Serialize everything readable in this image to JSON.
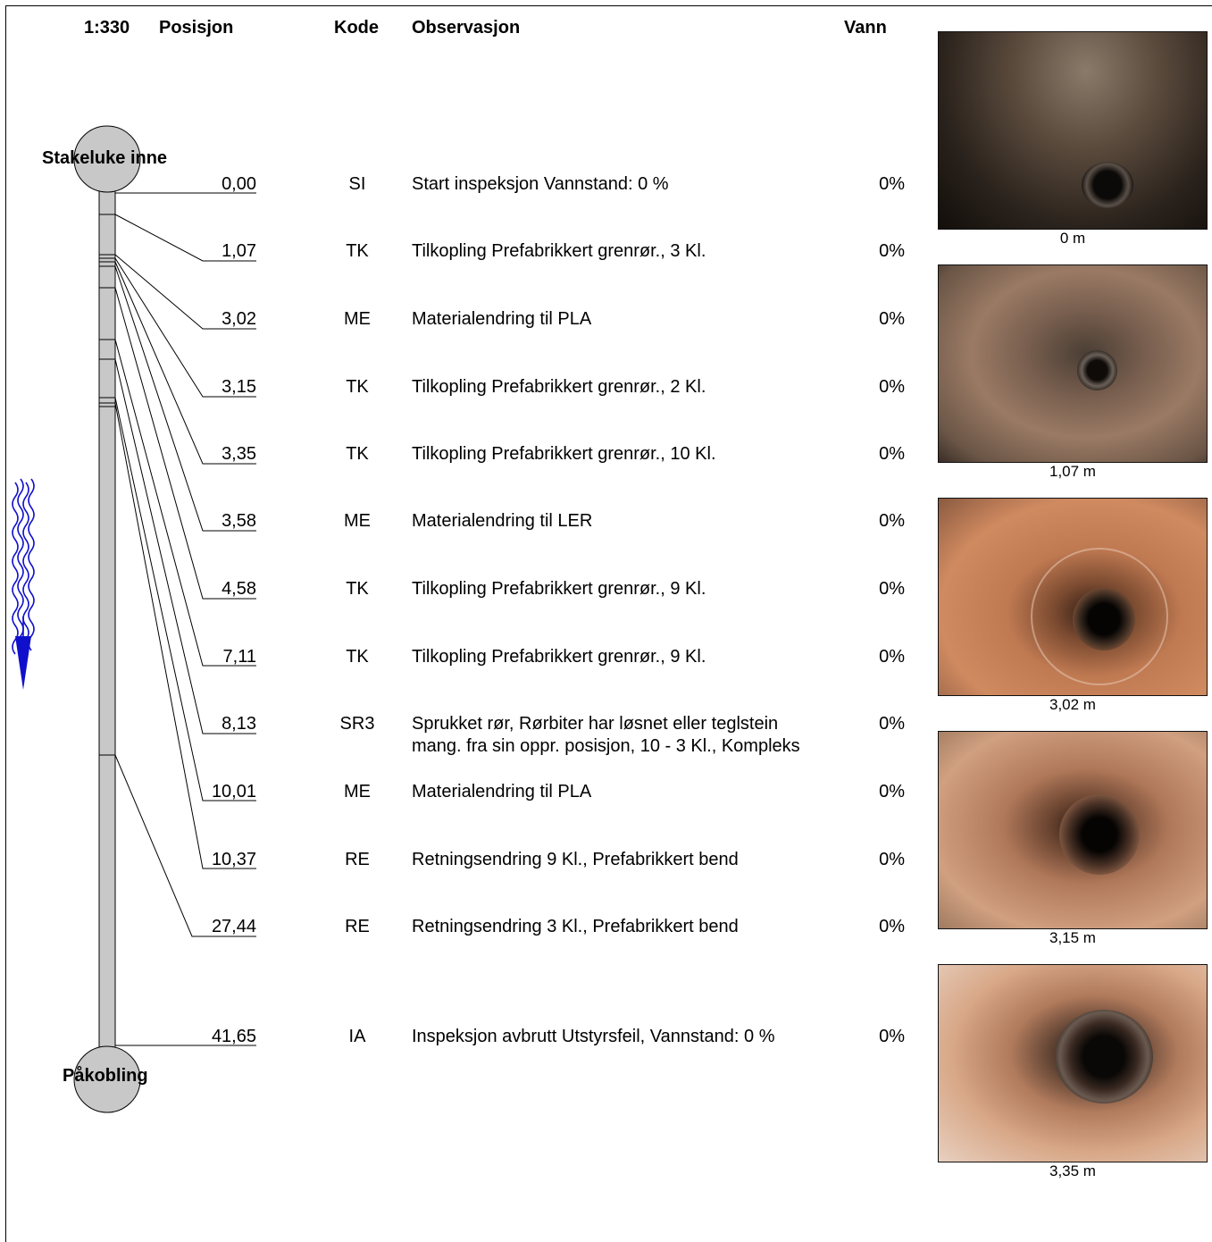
{
  "header": {
    "scale": "1:330",
    "position": "Posisjon",
    "code": "Kode",
    "observation": "Observasjon",
    "water": "Vann"
  },
  "manholes": {
    "start": "Stakeluke inne",
    "end": "Påkobling"
  },
  "observations": [
    {
      "position": "0,00",
      "code": "SI",
      "text": "Start inspeksjon  Vannstand: 0 %",
      "water": "0%"
    },
    {
      "position": "1,07",
      "code": "TK",
      "text": "Tilkopling Prefabrikkert grenrør.,  3 Kl.",
      "water": "0%"
    },
    {
      "position": "3,02",
      "code": "ME",
      "text": "Materialendring til  PLA",
      "water": "0%"
    },
    {
      "position": "3,15",
      "code": "TK",
      "text": "Tilkopling Prefabrikkert grenrør.,  2 Kl.",
      "water": "0%"
    },
    {
      "position": "3,35",
      "code": "TK",
      "text": "Tilkopling Prefabrikkert grenrør.,  10 Kl.",
      "water": "0%"
    },
    {
      "position": "3,58",
      "code": "ME",
      "text": "Materialendring til  LER",
      "water": "0%"
    },
    {
      "position": "4,58",
      "code": "TK",
      "text": "Tilkopling Prefabrikkert grenrør.,  9 Kl.",
      "water": "0%"
    },
    {
      "position": "7,11",
      "code": "TK",
      "text": "Tilkopling Prefabrikkert grenrør.,  9 Kl.",
      "water": "0%"
    },
    {
      "position": "8,13",
      "code": "SR3",
      "text": "Sprukket rør, Rørbiter har løsnet eller teglstein",
      "text2": "mang. fra sin oppr. posisjon, 10 - 3 Kl., Kompleks",
      "water": "0%"
    },
    {
      "position": "10,01",
      "code": "ME",
      "text": "Materialendring til  PLA",
      "water": "0%"
    },
    {
      "position": "10,37",
      "code": "RE",
      "text": "Retningsendring 9 Kl., Prefabrikkert bend",
      "water": "0%"
    },
    {
      "position": "27,44",
      "code": "RE",
      "text": "Retningsendring 3 Kl., Prefabrikkert bend",
      "water": "0%"
    },
    {
      "position": "41,65",
      "code": "IA",
      "text": "Inspeksjon avbrutt Utstyrsfeil,   Vannstand: 0 %",
      "water": "0%"
    }
  ],
  "photos": [
    {
      "caption": "0 m"
    },
    {
      "caption": "1,07 m"
    },
    {
      "caption": "3,02 m"
    },
    {
      "caption": "3,15 m"
    },
    {
      "caption": "3,35 m"
    }
  ]
}
